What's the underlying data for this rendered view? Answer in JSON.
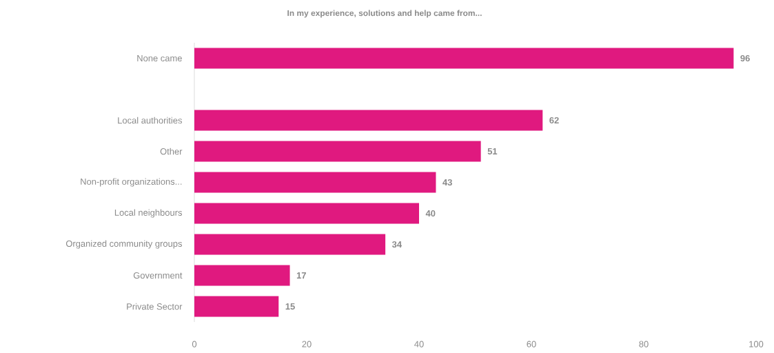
{
  "chart_data": {
    "type": "bar",
    "orientation": "horizontal",
    "title": "In my experience, solutions and help came from...",
    "categories": [
      "None came",
      null,
      "Local authorities",
      "Other",
      "Non-profit organizations...",
      "Local neighbours",
      "Organized community groups",
      "Government",
      "Private Sector"
    ],
    "values": [
      96,
      null,
      62,
      51,
      43,
      40,
      34,
      17,
      15
    ],
    "color": "#e0197f",
    "data_labels": true,
    "grid": false,
    "xlim": [
      0,
      100
    ],
    "xticks": [
      0,
      20,
      40,
      60,
      80,
      100
    ]
  }
}
